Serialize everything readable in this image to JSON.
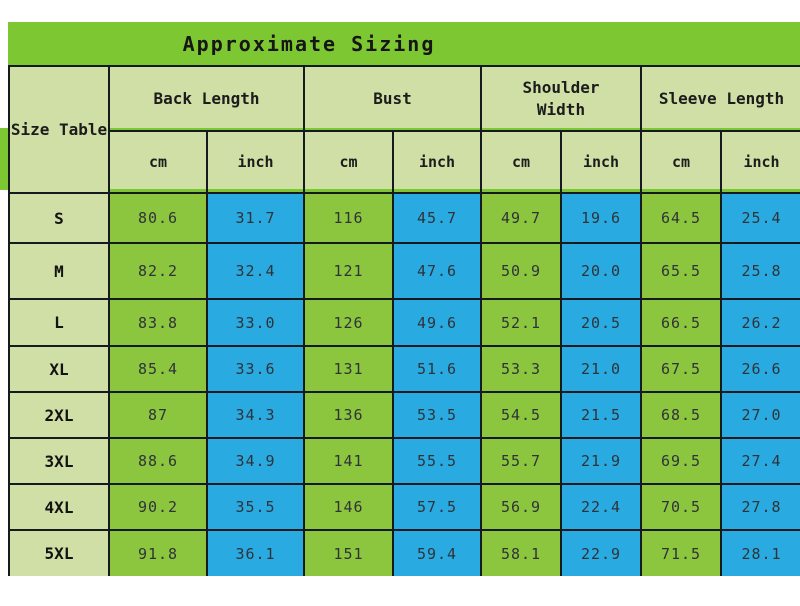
{
  "colors": {
    "title_green": "#7dc832",
    "cell_green": "#8cc63e",
    "cell_blue": "#29abe2",
    "header_sage": "#cfdfa5",
    "border_color": "#141a1e"
  },
  "chart_data": {
    "type": "table",
    "title": "Approximate Sizing",
    "corner_label": "Size Table",
    "column_groups": [
      "Back Length",
      "Bust",
      "Shoulder Width",
      "Sleeve Length"
    ],
    "unit_headers": [
      "cm",
      "inch"
    ],
    "row_labels": [
      "S",
      "M",
      "L",
      "XL",
      "2XL",
      "3XL",
      "4XL",
      "5XL"
    ],
    "rows": [
      [
        "80.6",
        "31.7",
        "116",
        "45.7",
        "49.7",
        "19.6",
        "64.5",
        "25.4"
      ],
      [
        "82.2",
        "32.4",
        "121",
        "47.6",
        "50.9",
        "20.0",
        "65.5",
        "25.8"
      ],
      [
        "83.8",
        "33.0",
        "126",
        "49.6",
        "52.1",
        "20.5",
        "66.5",
        "26.2"
      ],
      [
        "85.4",
        "33.6",
        "131",
        "51.6",
        "53.3",
        "21.0",
        "67.5",
        "26.6"
      ],
      [
        "87",
        "34.3",
        "136",
        "53.5",
        "54.5",
        "21.5",
        "68.5",
        "27.0"
      ],
      [
        "88.6",
        "34.9",
        "141",
        "55.5",
        "55.7",
        "21.9",
        "69.5",
        "27.4"
      ],
      [
        "90.2",
        "35.5",
        "146",
        "57.5",
        "56.9",
        "22.4",
        "70.5",
        "27.8"
      ],
      [
        "91.8",
        "36.1",
        "151",
        "59.4",
        "58.1",
        "22.9",
        "71.5",
        "28.1"
      ]
    ]
  }
}
